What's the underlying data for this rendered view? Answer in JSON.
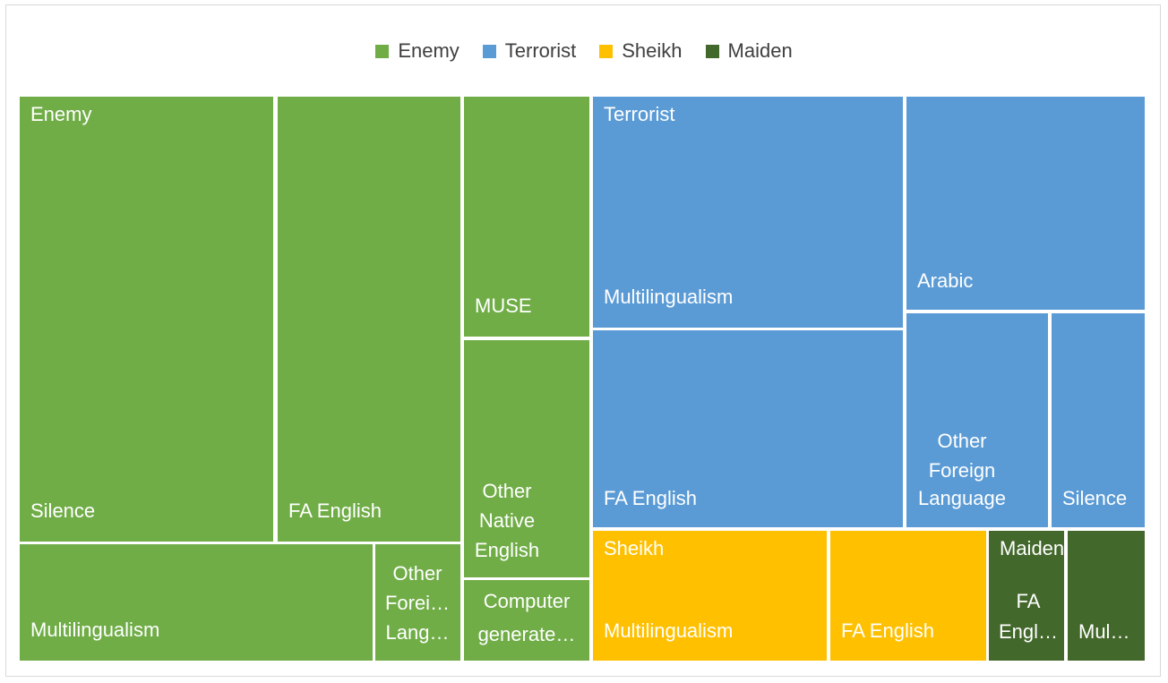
{
  "colors": {
    "Enemy": "#70ad47",
    "Terrorist": "#5b9bd5",
    "Sheikh": "#ffc000",
    "Maiden": "#43682b"
  },
  "chart_data": {
    "type": "treemap",
    "title": "",
    "legend": [
      "Enemy",
      "Terrorist",
      "Sheikh",
      "Maiden"
    ],
    "legend_position": "top",
    "groups": [
      {
        "name": "Enemy",
        "items": [
          {
            "name": "Silence",
            "value": 140
          },
          {
            "name": "FA English",
            "value": 101
          },
          {
            "name": "Multilingualism",
            "value": 51
          },
          {
            "name": "MUSE",
            "value": 37
          },
          {
            "name": "Other Native English",
            "value": 35
          },
          {
            "name": "Other Foreign Language",
            "value": 12
          },
          {
            "name": "Computer generated",
            "value": 11
          }
        ]
      },
      {
        "name": "Terrorist",
        "items": [
          {
            "name": "Multilingualism",
            "value": 87
          },
          {
            "name": "FA English",
            "value": 75
          },
          {
            "name": "Arabic",
            "value": 63
          },
          {
            "name": "Other Foreign Language",
            "value": 37
          },
          {
            "name": "Silence",
            "value": 25
          }
        ]
      },
      {
        "name": "Sheikh",
        "items": [
          {
            "name": "Multilingualism",
            "value": 37
          },
          {
            "name": "FA English",
            "value": 24
          }
        ]
      },
      {
        "name": "Maiden",
        "items": [
          {
            "name": "FA English",
            "value": 12
          },
          {
            "name": "Multilingualism",
            "value": 12
          }
        ]
      }
    ],
    "tile_labels": {
      "Enemy": [
        "Silence",
        "FA English",
        "Multilingualism",
        "MUSE",
        "Other Native English",
        "Other Forei… Lang…",
        "Computer generate…"
      ],
      "Terrorist": [
        "Multilingualism",
        "FA English",
        "Arabic",
        "Other Foreign Language",
        "Silence"
      ],
      "Sheikh": [
        "Multilingualism",
        "FA English"
      ],
      "Maiden": [
        "FA Engl…",
        "Mul…"
      ]
    }
  }
}
